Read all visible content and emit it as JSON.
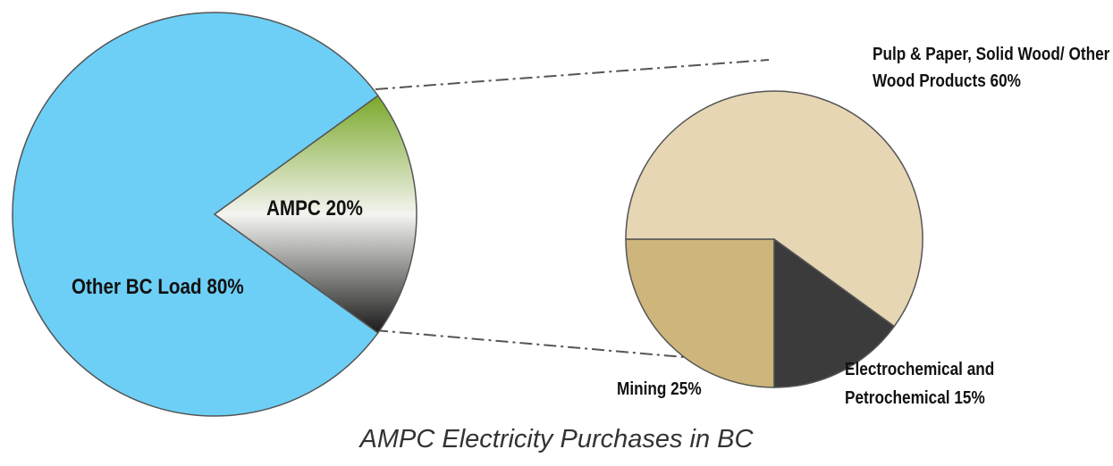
{
  "chart_data": [
    {
      "type": "pie",
      "title": "AMPC Electricity Purchases in BC",
      "values": [
        80,
        20
      ],
      "value_labels": [
        "Other BC Load 80%",
        "AMPC 20%"
      ],
      "colors": [
        "#6dcff6",
        "#7aa82a"
      ]
    },
    {
      "type": "pie",
      "values": [
        60,
        25,
        15
      ],
      "value_labels": [
        "Pulp & Paper, Solid Wood/ Other Wood Products 60%",
        "Mining 25%",
        "Electrochemical and Petrochemical 15%"
      ],
      "colors": [
        "#e6d6b4",
        "#cdb57c",
        "#3b3b3b"
      ]
    }
  ]
}
